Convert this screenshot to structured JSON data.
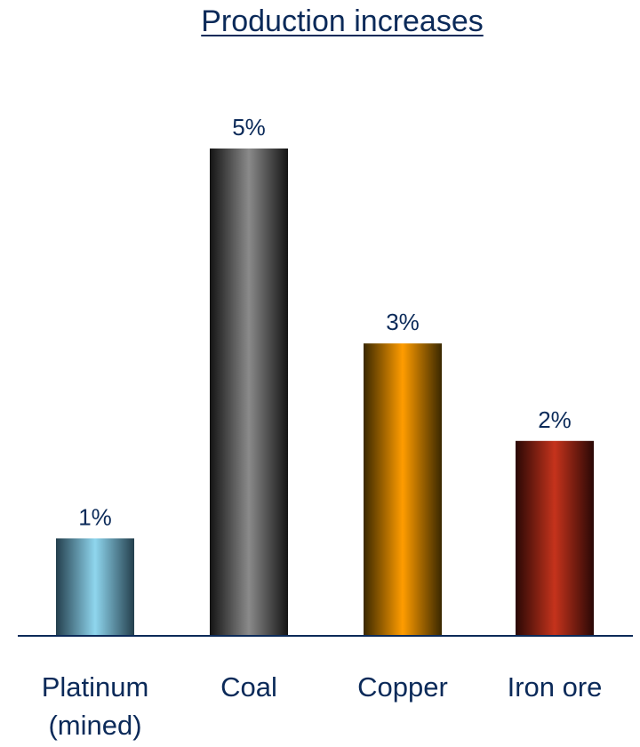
{
  "chart_data": {
    "type": "bar",
    "title": "Production increases",
    "categories": [
      "Platinum (mined)",
      "Coal",
      "Copper",
      "Iron ore"
    ],
    "category_lines": [
      [
        "Platinum",
        "(mined)"
      ],
      [
        "Coal"
      ],
      [
        "Copper"
      ],
      [
        "Iron ore"
      ]
    ],
    "values": [
      1,
      5,
      3,
      2
    ],
    "value_labels": [
      "1%",
      "5%",
      "3%",
      "2%"
    ],
    "unit": "%",
    "ylim": [
      0,
      5
    ],
    "grid": false,
    "legend": "none",
    "colors": [
      {
        "edge": "#243f4d",
        "mid": "#8fd6ee"
      },
      {
        "edge": "#141414",
        "mid": "#8a8a8a"
      },
      {
        "edge": "#3a2800",
        "mid": "#ff9c00"
      },
      {
        "edge": "#2a0805",
        "mid": "#c5331c"
      }
    ],
    "axis_color": "#0b2a59"
  }
}
